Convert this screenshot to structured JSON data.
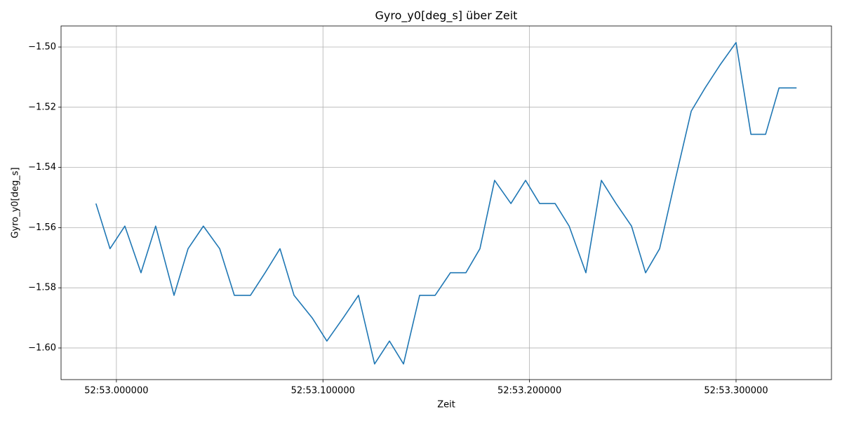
{
  "chart_data": {
    "type": "line",
    "title": "Gyro_y0[deg_s] über Zeit",
    "x_label": "Zeit",
    "y_label": "Gyro_y0[deg_s]",
    "grid": true,
    "xlim": [
      3172.9732,
      3173.3462
    ],
    "xticks": [
      {
        "value": 3173.0,
        "label": "52:53.000000"
      },
      {
        "value": 3173.1,
        "label": "52:53.100000"
      },
      {
        "value": 3173.2,
        "label": "52:53.200000"
      },
      {
        "value": 3173.3,
        "label": "52:53.300000"
      }
    ],
    "ylim": [
      -1.6105,
      -1.493
    ],
    "yticks": [
      {
        "value": -1.6,
        "label": "−1.60"
      },
      {
        "value": -1.58,
        "label": "−1.58"
      },
      {
        "value": -1.56,
        "label": "−1.56"
      },
      {
        "value": -1.54,
        "label": "−1.54"
      },
      {
        "value": -1.52,
        "label": "−1.52"
      },
      {
        "value": -1.5,
        "label": "−1.50"
      }
    ],
    "x": [
      3172.9901,
      3172.9969,
      3173.0041,
      3173.0119,
      3173.019,
      3173.0279,
      3173.0347,
      3173.0421,
      3173.05,
      3173.0571,
      3173.0649,
      3173.072,
      3173.0792,
      3173.086,
      3173.0948,
      3173.1019,
      3173.1098,
      3173.1172,
      3173.125,
      3173.1322,
      3173.139,
      3173.1468,
      3173.1543,
      3173.1617,
      3173.1692,
      3173.176,
      3173.1831,
      3173.191,
      3173.1981,
      3173.2049,
      3173.2124,
      3173.2192,
      3173.2273,
      3173.2348,
      3173.2419,
      3173.2494,
      3173.2562,
      3173.263,
      3173.2705,
      3173.2783,
      3173.2851,
      3173.2922,
      3173.3,
      3173.3072,
      3173.3143,
      3173.3208,
      3173.3293
    ],
    "series": [
      {
        "color": "#1f77b4",
        "values": [
          -1.552,
          -1.567,
          -1.5595,
          -1.575,
          -1.5595,
          -1.5825,
          -1.567,
          -1.5595,
          -1.567,
          -1.5825,
          -1.5825,
          -1.575,
          -1.567,
          -1.5825,
          -1.59,
          -1.5977,
          -1.59,
          -1.5825,
          -1.6053,
          -1.5977,
          -1.6053,
          -1.5825,
          -1.5825,
          -1.575,
          -1.575,
          -1.567,
          -1.5443,
          -1.552,
          -1.5443,
          -1.552,
          -1.552,
          -1.5595,
          -1.575,
          -1.5443,
          -1.552,
          -1.5595,
          -1.575,
          -1.567,
          -1.5443,
          -1.5213,
          -1.5135,
          -1.506,
          -1.4985,
          -1.529,
          -1.529,
          -1.5136,
          -1.5136
        ]
      }
    ]
  }
}
